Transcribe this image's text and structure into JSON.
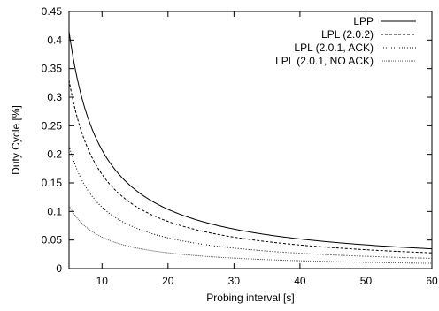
{
  "chart_data": {
    "type": "line",
    "title": "",
    "xlabel": "Probing interval [s]",
    "ylabel": "Duty Cycle [%]",
    "xlim": [
      5,
      60
    ],
    "ylim": [
      0,
      0.45
    ],
    "x_ticks": [
      10,
      20,
      30,
      40,
      50,
      60
    ],
    "y_ticks": [
      0,
      0.05,
      0.1,
      0.15,
      0.2,
      0.25,
      0.3,
      0.35,
      0.4,
      0.45
    ],
    "x_tick_labels": [
      "10",
      "20",
      "30",
      "40",
      "50",
      "60"
    ],
    "y_tick_labels": [
      "0",
      "0.05",
      "0.1",
      "0.15",
      "0.2",
      "0.25",
      "0.3",
      "0.35",
      "0.4",
      "0.45"
    ],
    "grid": false,
    "legend": "top-right",
    "x": [
      5,
      6,
      7,
      8,
      10,
      12,
      15,
      20,
      25,
      30,
      35,
      40,
      45,
      50,
      55,
      60
    ],
    "series": [
      {
        "name": "LPP",
        "style": "solid",
        "values": [
          0.415,
          0.346,
          0.297,
          0.26,
          0.208,
          0.173,
          0.139,
          0.104,
          0.083,
          0.069,
          0.059,
          0.052,
          0.046,
          0.042,
          0.038,
          0.035
        ]
      },
      {
        "name": "LPL (2.0.2)",
        "style": "dashed",
        "values": [
          0.33,
          0.275,
          0.236,
          0.206,
          0.165,
          0.138,
          0.11,
          0.083,
          0.066,
          0.055,
          0.047,
          0.041,
          0.037,
          0.033,
          0.03,
          0.028
        ]
      },
      {
        "name": "LPL (2.0.1, ACK)",
        "style": "dotted",
        "values": [
          0.215,
          0.179,
          0.154,
          0.134,
          0.108,
          0.09,
          0.072,
          0.054,
          0.043,
          0.036,
          0.031,
          0.027,
          0.024,
          0.022,
          0.02,
          0.018
        ]
      },
      {
        "name": "LPL (2.0.1, NO ACK)",
        "style": "fine-dotted",
        "values": [
          0.11,
          0.092,
          0.079,
          0.069,
          0.055,
          0.046,
          0.037,
          0.028,
          0.022,
          0.018,
          0.016,
          0.014,
          0.012,
          0.011,
          0.01,
          0.009
        ]
      }
    ]
  }
}
